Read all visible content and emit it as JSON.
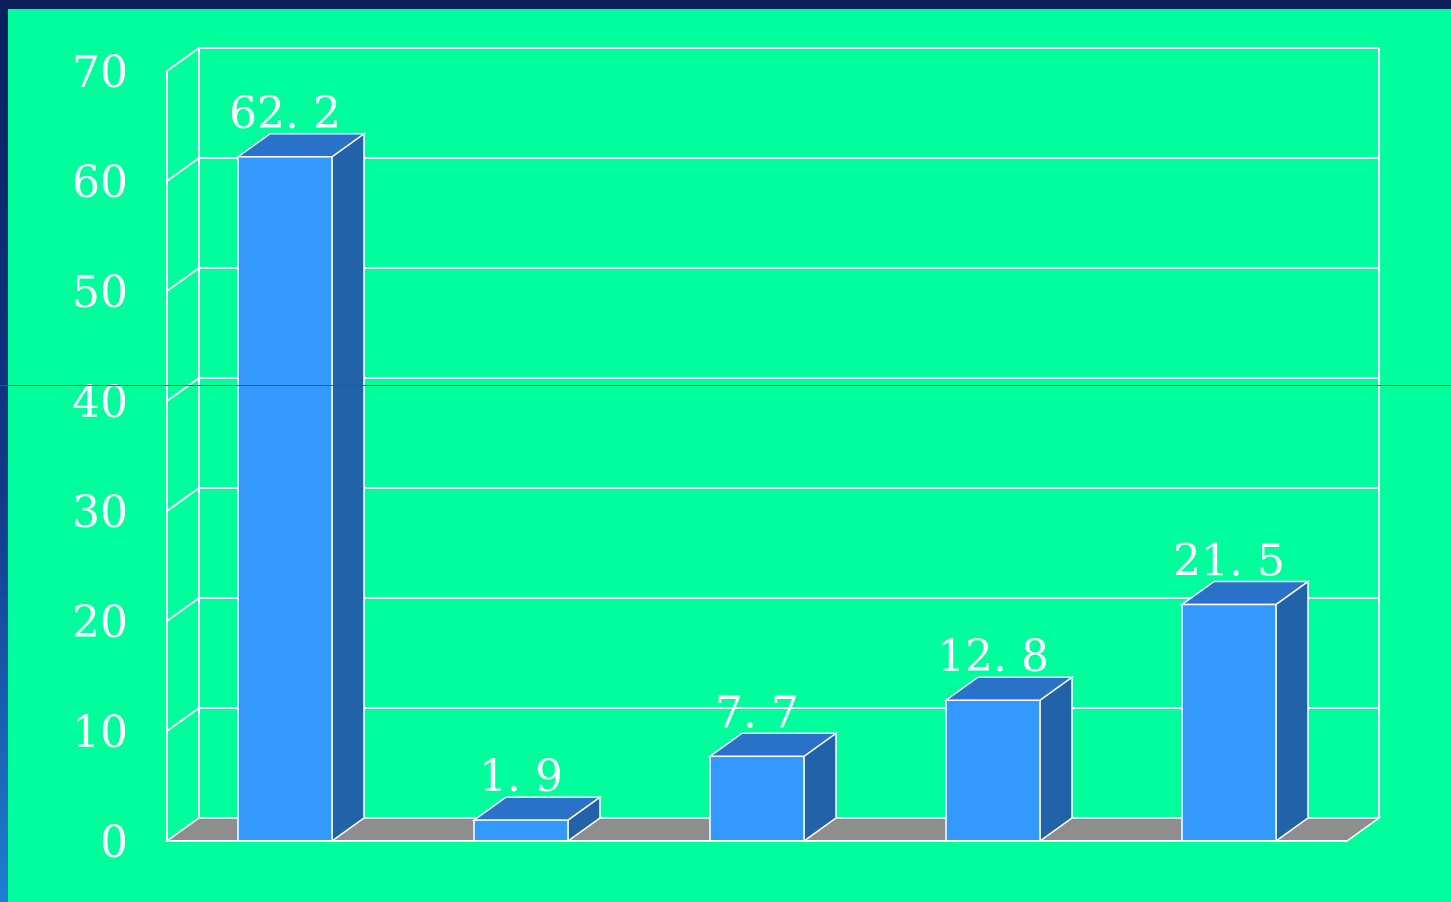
{
  "colors": {
    "background": "#00ff9c",
    "frame": "#0a1f5c",
    "bar_front": "#3399ff",
    "bar_top": "#2a72c8",
    "bar_side": "#2262a8",
    "floor": "#8e8e8e",
    "grid": "#ffffff"
  },
  "chart_data": {
    "type": "bar",
    "three_d": true,
    "categories": [
      "",
      "",
      "",
      "",
      ""
    ],
    "values": [
      62.2,
      1.9,
      7.7,
      12.8,
      21.5
    ],
    "value_labels": [
      "62. 2",
      "1. 9",
      "7. 7",
      "12. 8",
      "21. 5"
    ],
    "ylim": [
      0,
      70
    ],
    "yticks": [
      0,
      10,
      20,
      30,
      40,
      50,
      60,
      70
    ],
    "ytick_labels": [
      "0",
      "10",
      "20",
      "30",
      "40",
      "50",
      "60",
      "70"
    ],
    "grid": true,
    "legend": "none",
    "title": "",
    "xlabel": "",
    "ylabel": ""
  }
}
